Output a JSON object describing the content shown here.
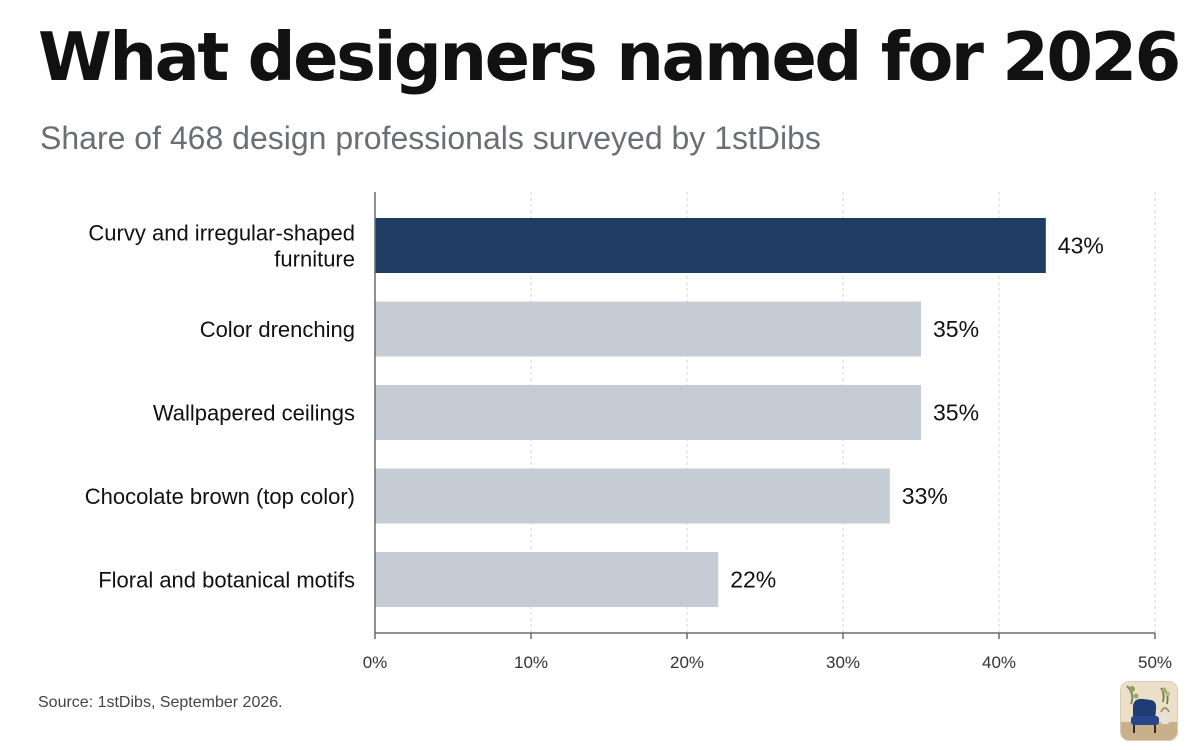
{
  "title": "What designers named for 2026",
  "subtitle": "Share of 468 design professionals surveyed by 1stDibs",
  "source": "Source: 1stDibs, September 2026.",
  "colors": {
    "highlight": "#1f3c64",
    "bar": "#c5ccd5",
    "axis": "#6b6b6b",
    "grid": "#d4d4d4"
  },
  "chart_data": {
    "type": "bar",
    "orientation": "horizontal",
    "categories": [
      [
        "Curvy and irregular-shaped",
        "furniture"
      ],
      [
        "Color drenching"
      ],
      [
        "Wallpapered ceilings"
      ],
      [
        "Chocolate brown (top color)"
      ],
      [
        "Floral and botanical motifs"
      ]
    ],
    "values": [
      43,
      35,
      35,
      33,
      22
    ],
    "value_labels": [
      "43%",
      "35%",
      "35%",
      "33%",
      "22%"
    ],
    "highlight_index": 0,
    "xlim": [
      0,
      50
    ],
    "xticks": [
      0,
      10,
      20,
      30,
      40,
      50
    ],
    "xtick_labels": [
      "0%",
      "10%",
      "20%",
      "30%",
      "40%",
      "50%"
    ],
    "grid": "vertical dashed",
    "legend": "none"
  },
  "thumbnail": {
    "icon": "armchair-photo-icon"
  }
}
